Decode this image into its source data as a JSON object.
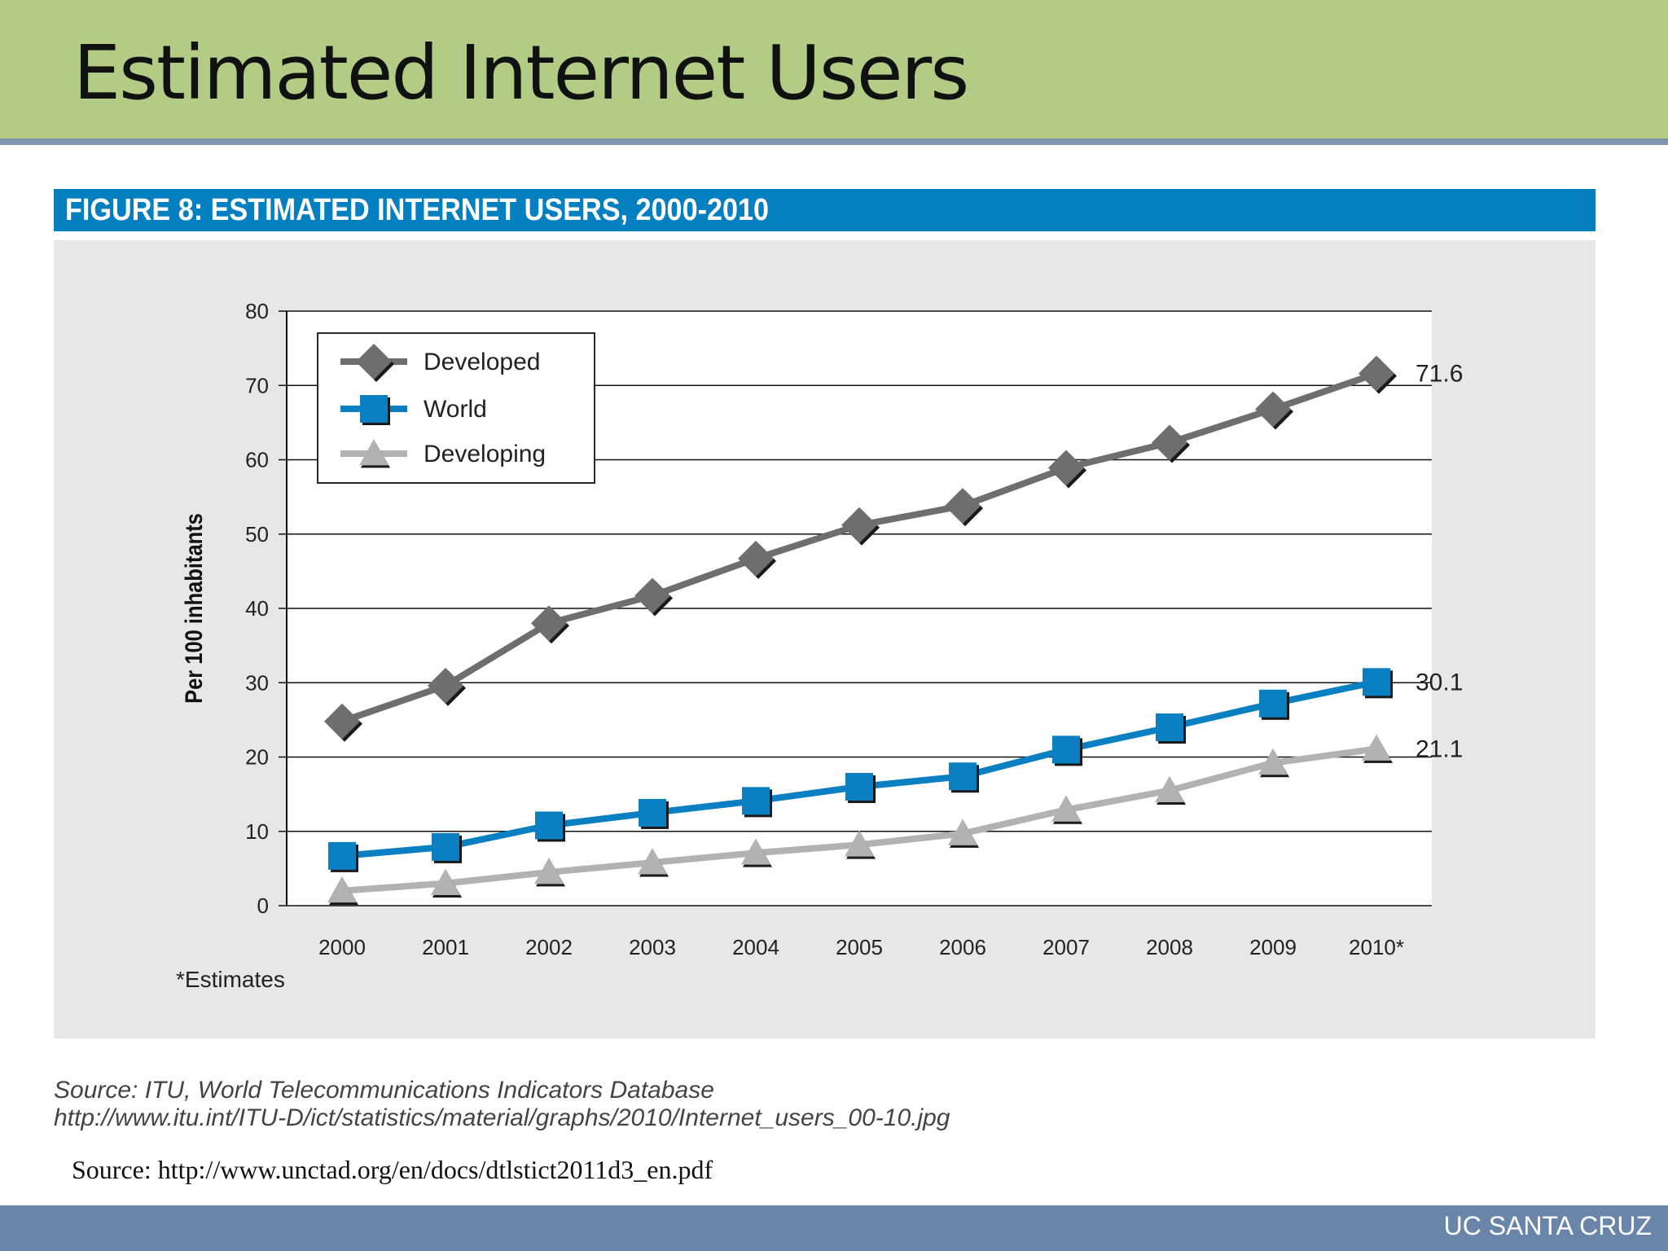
{
  "slide": {
    "title": "Estimated Internet Users",
    "source_itu": "Source: ITU, World Telecommunications Indicators Database",
    "source_itu_url": "http://www.itu.int/ITU-D/ict/statistics/material/graphs/2010/Internet_users_00-10.jpg",
    "source_unctad": "Source: http://www.unctad.org/en/docs/dtlstict2011d3_en.pdf",
    "footer": "UC SANTA CRUZ"
  },
  "colors": {
    "header_bg": "#b2cc86",
    "banner_bg": "#0480c1",
    "footer_bg": "#6985aa",
    "developed": "#6e6e70",
    "world": "#0a7fc2",
    "developing": "#b2b2b4"
  },
  "chart_data": {
    "type": "line",
    "title": "FIGURE 8: ESTIMATED INTERNET USERS, 2000-2010",
    "ylabel": "Per 100 inhabitants",
    "xlabel": "",
    "categories": [
      "2000",
      "2001",
      "2002",
      "2003",
      "2004",
      "2005",
      "2006",
      "2007",
      "2008",
      "2009",
      "2010*"
    ],
    "ylim": [
      0,
      80
    ],
    "yticks": [
      0,
      10,
      20,
      30,
      40,
      50,
      60,
      70,
      80
    ],
    "grid": true,
    "legend_position": "top-left",
    "note": "*Estimates",
    "series": [
      {
        "name": "Developed",
        "marker": "diamond",
        "values": [
          24.8,
          29.6,
          38.0,
          41.7,
          46.7,
          51.2,
          53.8,
          58.9,
          62.3,
          66.8,
          71.6
        ],
        "end_label": "71.6"
      },
      {
        "name": "World",
        "marker": "square",
        "values": [
          6.7,
          7.9,
          10.8,
          12.5,
          14.1,
          16.0,
          17.4,
          21.0,
          24.0,
          27.2,
          30.1
        ],
        "end_label": "30.1"
      },
      {
        "name": "Developing",
        "marker": "triangle",
        "values": [
          2.0,
          3.0,
          4.5,
          5.8,
          7.1,
          8.2,
          9.7,
          12.9,
          15.5,
          19.2,
          21.1
        ],
        "end_label": "21.1"
      }
    ]
  }
}
